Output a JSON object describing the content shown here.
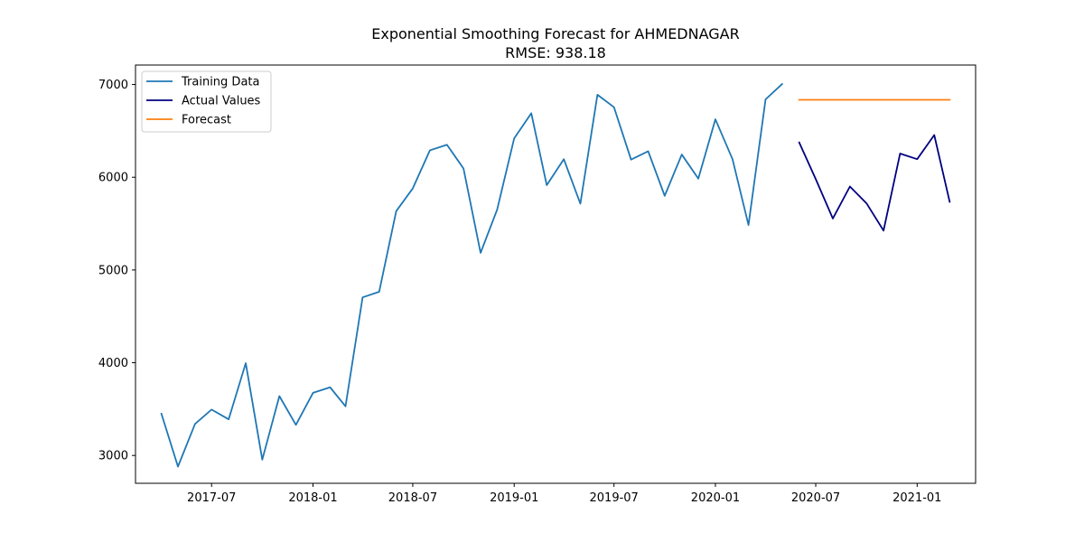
{
  "chart_data": {
    "type": "line",
    "title": "Exponential Smoothing Forecast for AHMEDNAGAR",
    "subtitle": "RMSE: 938.18",
    "xlabel": "",
    "ylabel": "",
    "x_range": [
      "2017-02-13",
      "2021-04-17"
    ],
    "ylim": [
      2700,
      7210
    ],
    "x_ticks": [
      "2017-07",
      "2018-01",
      "2018-07",
      "2019-01",
      "2019-07",
      "2020-01",
      "2020-07",
      "2021-01"
    ],
    "y_ticks": [
      3000,
      4000,
      5000,
      6000,
      7000
    ],
    "grid": false,
    "legend_position": "top-left",
    "series": [
      {
        "name": "Training Data",
        "color": "#1f77b4",
        "x": [
          "2017-04-01",
          "2017-05-01",
          "2017-06-01",
          "2017-07-01",
          "2017-08-01",
          "2017-09-01",
          "2017-10-01",
          "2017-11-01",
          "2017-12-01",
          "2018-01-01",
          "2018-02-01",
          "2018-03-01",
          "2018-04-01",
          "2018-05-01",
          "2018-06-01",
          "2018-07-01",
          "2018-08-01",
          "2018-09-01",
          "2018-10-01",
          "2018-11-01",
          "2018-12-01",
          "2019-01-01",
          "2019-02-01",
          "2019-03-01",
          "2019-04-01",
          "2019-05-01",
          "2019-06-01",
          "2019-07-01",
          "2019-08-01",
          "2019-09-01",
          "2019-10-01",
          "2019-11-01",
          "2019-12-01",
          "2020-01-01",
          "2020-02-01",
          "2020-03-01",
          "2020-04-01",
          "2020-05-01"
        ],
        "values": [
          3450,
          2880,
          3340,
          3495,
          3390,
          3995,
          2955,
          3640,
          3330,
          3675,
          3735,
          3530,
          4705,
          4765,
          5635,
          5880,
          6290,
          6350,
          6095,
          5185,
          5650,
          6420,
          6690,
          5915,
          6195,
          5715,
          6890,
          6755,
          6190,
          6280,
          5800,
          6245,
          5985,
          6625,
          6195,
          5485,
          6840,
          7005
        ]
      },
      {
        "name": "Actual Values",
        "color": "#000080",
        "x": [
          "2020-06-01",
          "2020-07-01",
          "2020-08-01",
          "2020-09-01",
          "2020-10-01",
          "2020-11-01",
          "2020-12-01",
          "2021-01-01",
          "2021-02-01",
          "2021-03-01"
        ],
        "values": [
          6375,
          5980,
          5555,
          5900,
          5720,
          5425,
          6255,
          6195,
          6455,
          5735
        ]
      },
      {
        "name": "Forecast",
        "color": "#ff7f0e",
        "x": [
          "2020-06-01",
          "2021-03-01"
        ],
        "values": [
          6835,
          6835
        ]
      }
    ]
  }
}
